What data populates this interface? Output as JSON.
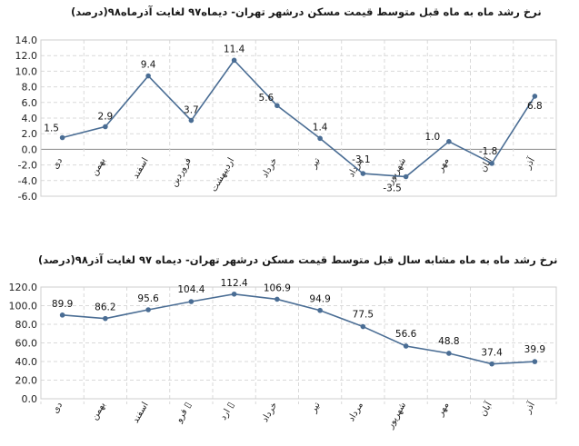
{
  "chart_data": [
    {
      "type": "line",
      "title": "نرخ رشد ماه به ماه قبل متوسط قیمت مسکن درشهر تهران- دیماه۹۷ لغایت آذرماه۹۸(درصد)",
      "categories": [
        "دی",
        "بهمن",
        "اسفند",
        "فروردین",
        "اردیبهشت",
        "خرداد",
        "تیر",
        "مرداد",
        "شهریور",
        "مهر",
        "آبان",
        "آذر"
      ],
      "series": [
        {
          "values": [
            1.5,
            2.9,
            9.4,
            3.7,
            11.4,
            5.6,
            1.4,
            -3.1,
            -3.5,
            1.0,
            -1.8,
            6.8
          ],
          "labels": [
            "1.5",
            "2.9",
            "9.4",
            "3.7",
            "11.4",
            "5.6",
            "1.4",
            "-3.1",
            "-3.5",
            "1.0",
            "-1.8",
            "6.8"
          ]
        }
      ],
      "yticks": [
        "14.0",
        "12.0",
        "10.0",
        "8.0",
        "6.0",
        "4.0",
        "2.0",
        "0.0",
        "-2.0",
        "-4.0",
        "-6.0"
      ],
      "ylim": [
        -6,
        14
      ],
      "grid": true,
      "line_color": "#4a6d94"
    },
    {
      "type": "line",
      "title": "نرخ رشد ماه به ماه مشابه سال قبل متوسط قیمت مسکن درشهر تهران- دیماه ۹۷ لغایت آذر۹۸(درصد)",
      "categories": [
        "دی",
        "بهمن",
        "اسفند",
        "فرو ▯",
        "ارد ▯",
        "خرداد",
        "تیر",
        "مرداد",
        "شهریور",
        "مهر",
        "آبان",
        "آذر"
      ],
      "series": [
        {
          "values": [
            89.9,
            86.2,
            95.6,
            104.4,
            112.4,
            106.9,
            94.9,
            77.5,
            56.6,
            48.8,
            37.4,
            39.9
          ],
          "labels": [
            "89.9",
            "86.2",
            "95.6",
            "104.4",
            "112.4",
            "106.9",
            "94.9",
            "77.5",
            "56.6",
            "48.8",
            "37.4",
            "39.9"
          ]
        }
      ],
      "yticks": [
        "120.0",
        "100.0",
        "80.0",
        "60.0",
        "40.0",
        "20.0",
        "0.0"
      ],
      "ylim": [
        0,
        120
      ],
      "grid": true,
      "line_color": "#4a6d94"
    }
  ]
}
